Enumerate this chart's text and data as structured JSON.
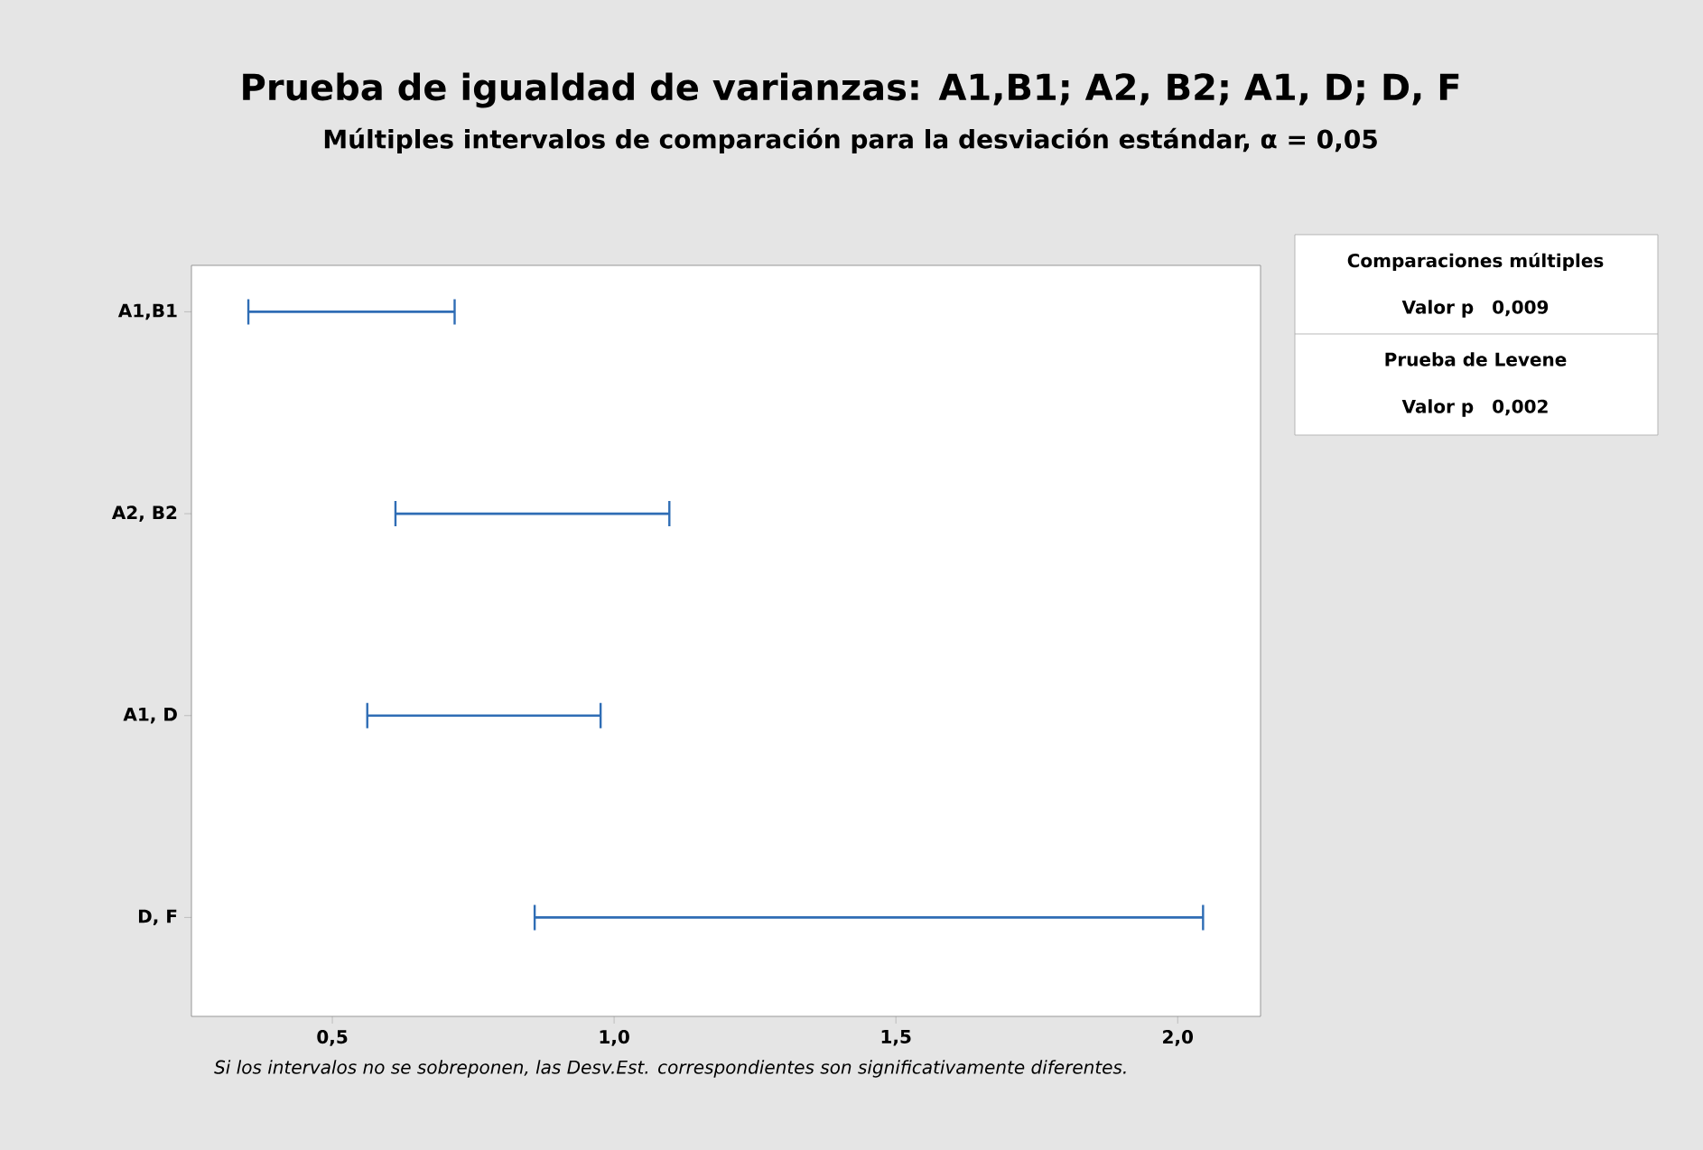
{
  "chart_data": {
    "type": "bar",
    "orientation": "horizontal",
    "title": "Prueba de igualdad de varianzas: A1,B1; A2, B2; A1, D; D, F",
    "subtitle": "Múltiples intervalos de comparación para la desviación estándar, α = 0,05",
    "categories": [
      "A1,B1",
      "A2, B2",
      "A1, D",
      "D, F"
    ],
    "base": [
      0.351,
      0.612,
      0.562,
      0.859
    ],
    "values": [
      0.366,
      0.486,
      0.414,
      1.186
    ],
    "color": "#2f6db5",
    "xlim": [
      0.25,
      2.147
    ],
    "xticks": [
      {
        "value": 0.5,
        "label": "0,5"
      },
      {
        "value": 1.0,
        "label": "1,0"
      },
      {
        "value": 1.5,
        "label": "1,5"
      },
      {
        "value": 2.0,
        "label": "2,0"
      }
    ],
    "annotations": [
      "Comparaciones múltiples",
      "Valor p  0,009",
      "Prueba de Levene",
      "Valor p  0,002",
      "Si los intervalos no se sobreponen, las Desv.Est. correspondientes son significativamente diferentes."
    ],
    "grid": false
  }
}
